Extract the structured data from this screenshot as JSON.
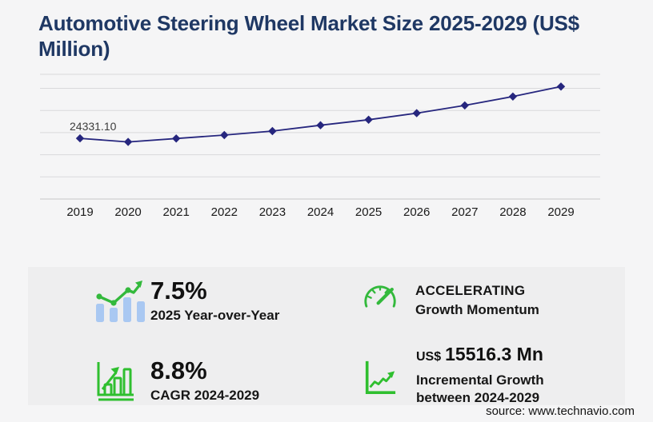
{
  "title": {
    "text": "Automotive Steering Wheel Market Size 2025-2029 (US$ Million)"
  },
  "chart_data": {
    "type": "line",
    "title": "Automotive Steering Wheel Market Size 2025-2029 (US$ Million)",
    "x": [
      "2019",
      "2020",
      "2021",
      "2022",
      "2023",
      "2024",
      "2025",
      "2026",
      "2027",
      "2028",
      "2029"
    ],
    "series": [
      {
        "name": "Market size (US$ Million)",
        "values": [
          24331.1,
          22900,
          24260,
          25640,
          27240,
          29578.1,
          31796.4,
          34435,
          37534,
          41100,
          45094.4
        ]
      }
    ],
    "data_labels": [
      {
        "x": "2019",
        "text": "24331.10"
      }
    ],
    "ylim": [
      0,
      50000
    ],
    "xlabel": "",
    "ylabel": "",
    "grid": "horizontal",
    "legend": "none",
    "marker": "diamond",
    "line_color": "#26267e"
  },
  "stats": {
    "yoy": {
      "icon": "bar-chart-trend-icon",
      "value": "7.5%",
      "label": "2025 Year-over-Year"
    },
    "momentum": {
      "icon": "speedometer-icon",
      "line1": "ACCELERATING",
      "line2": "Growth Momentum"
    },
    "cagr": {
      "icon": "growth-bars-icon",
      "value": "8.8%",
      "label": "CAGR 2024-2029"
    },
    "incremental": {
      "icon": "chart-axes-arrow-icon",
      "currency": "US$",
      "value": "15516.3 Mn",
      "line1": "Incremental Growth",
      "line2": "between 2024-2029"
    }
  },
  "source": {
    "text": "source: www.technavio.com"
  },
  "colors": {
    "title": "#1f3864",
    "line": "#26267e",
    "accent_green": "#33b93c",
    "bar_blue": "#a9c8f2",
    "page_bg": "#f5f5f6",
    "panel_bg": "#eeeeef",
    "grid": "#d9d9db",
    "axis": "#c6c6c8",
    "text": "#1a1a1a"
  }
}
